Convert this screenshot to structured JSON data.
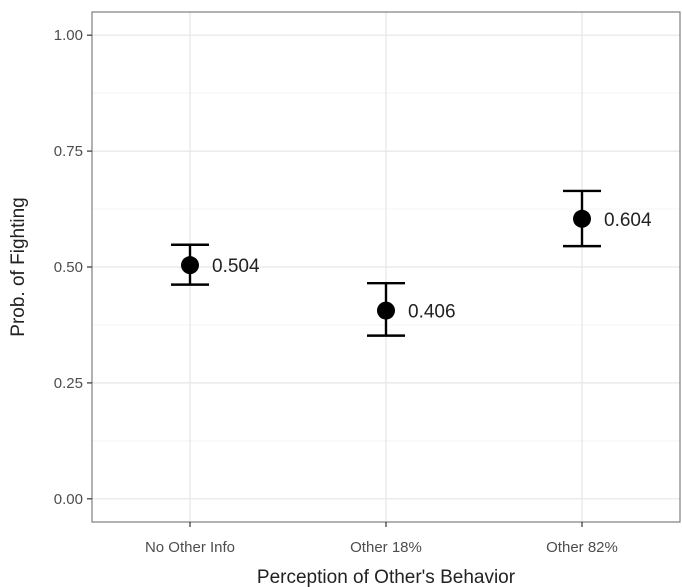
{
  "chart_data": {
    "type": "scatter",
    "title": "",
    "xlabel": "Perception of Other's Behavior",
    "ylabel": "Prob. of Fighting",
    "categories": [
      "No Other Info",
      "Other 18%",
      "Other 82%"
    ],
    "values": [
      0.504,
      0.406,
      0.604
    ],
    "error_low": [
      0.462,
      0.352,
      0.545
    ],
    "error_high": [
      0.548,
      0.465,
      0.664
    ],
    "data_labels": [
      "0.504",
      "0.406",
      "0.604"
    ],
    "ylim": [
      -0.05,
      1.05
    ],
    "yticks": [
      0.0,
      0.25,
      0.5,
      0.75,
      1.0
    ],
    "ytick_labels": [
      "0.00",
      "0.25",
      "0.50",
      "0.75",
      "1.00"
    ],
    "grid": true,
    "legend": "none",
    "colors": {
      "point": "#000000",
      "grid_major": "#e6e6e6",
      "grid_minor": "#f4f4f4",
      "border": "#7f7f7f"
    }
  }
}
